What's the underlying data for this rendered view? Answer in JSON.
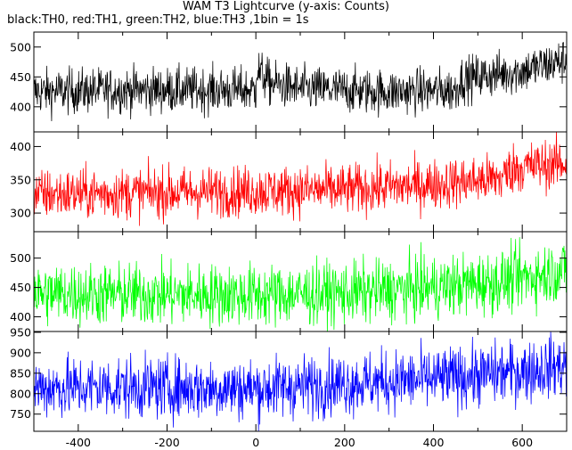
{
  "chart_data": {
    "type": "line",
    "title": "WAM T3 Lightcurve (y-axis: Counts)",
    "subtitle": "black:TH0, red:TH1, green:TH2, blue:TH3 ,1bin = 1s",
    "xlim": [
      -500,
      700
    ],
    "x_ticks": [
      -400,
      -200,
      0,
      200,
      400,
      600
    ],
    "bin_size_s": 1,
    "panels": [
      {
        "name": "TH0",
        "color": "#000000",
        "ylim": [
          358,
          525
        ],
        "y_ticks": [
          400,
          450,
          500
        ],
        "trend": [
          [
            -500,
            425
          ],
          [
            -300,
            428
          ],
          [
            0,
            428
          ],
          [
            0,
            465
          ],
          [
            30,
            440
          ],
          [
            100,
            430
          ],
          [
            300,
            425
          ],
          [
            450,
            428
          ],
          [
            460,
            445
          ],
          [
            500,
            450
          ],
          [
            600,
            460
          ],
          [
            700,
            478
          ]
        ],
        "noise_amplitude": 25
      },
      {
        "name": "TH1",
        "color": "#ff0000",
        "ylim": [
          272,
          422
        ],
        "y_ticks": [
          300,
          350,
          400
        ],
        "trend": [
          [
            -500,
            328
          ],
          [
            -300,
            330
          ],
          [
            0,
            333
          ],
          [
            200,
            335
          ],
          [
            400,
            343
          ],
          [
            550,
            352
          ],
          [
            580,
            368
          ],
          [
            700,
            375
          ]
        ],
        "noise_amplitude": 25
      },
      {
        "name": "TH2",
        "color": "#00ff00",
        "ylim": [
          375,
          545
        ],
        "y_ticks": [
          400,
          450,
          500
        ],
        "trend": [
          [
            -500,
            440
          ],
          [
            -300,
            438
          ],
          [
            0,
            437
          ],
          [
            200,
            440
          ],
          [
            400,
            450
          ],
          [
            550,
            460
          ],
          [
            700,
            480
          ]
        ],
        "noise_amplitude": 35
      },
      {
        "name": "TH3",
        "color": "#0000ff",
        "ylim": [
          708,
          952
        ],
        "y_ticks": [
          750,
          800,
          850,
          900,
          950
        ],
        "trend": [
          [
            -500,
            815
          ],
          [
            -300,
            815
          ],
          [
            0,
            812
          ],
          [
            200,
            825
          ],
          [
            400,
            835
          ],
          [
            500,
            845
          ],
          [
            600,
            855
          ],
          [
            700,
            870
          ]
        ],
        "noise_amplitude": 50
      }
    ]
  }
}
